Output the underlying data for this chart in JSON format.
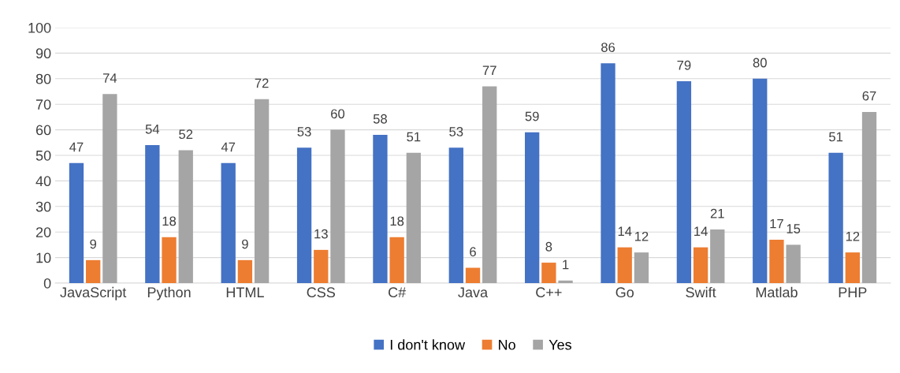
{
  "chart_data": {
    "type": "bar",
    "categories": [
      "JavaScript",
      "Python",
      "HTML",
      "CSS",
      "C#",
      "Java",
      "C++",
      "Go",
      "Swift",
      "Matlab",
      "PHP"
    ],
    "series": [
      {
        "name": "I don't know",
        "color": "#4472c4",
        "values": [
          47,
          54,
          47,
          53,
          58,
          53,
          59,
          86,
          79,
          80,
          51
        ]
      },
      {
        "name": "No",
        "color": "#ed7d31",
        "values": [
          9,
          18,
          9,
          13,
          18,
          6,
          8,
          14,
          14,
          17,
          12
        ]
      },
      {
        "name": "Yes",
        "color": "#a5a5a5",
        "values": [
          74,
          52,
          72,
          60,
          51,
          77,
          1,
          12,
          21,
          15,
          67
        ]
      }
    ],
    "ylim": [
      0,
      100
    ],
    "yticks": [
      0,
      10,
      20,
      30,
      40,
      50,
      60,
      70,
      80,
      90,
      100
    ],
    "grid": "y",
    "legend": "bottom",
    "data_labels": true
  }
}
